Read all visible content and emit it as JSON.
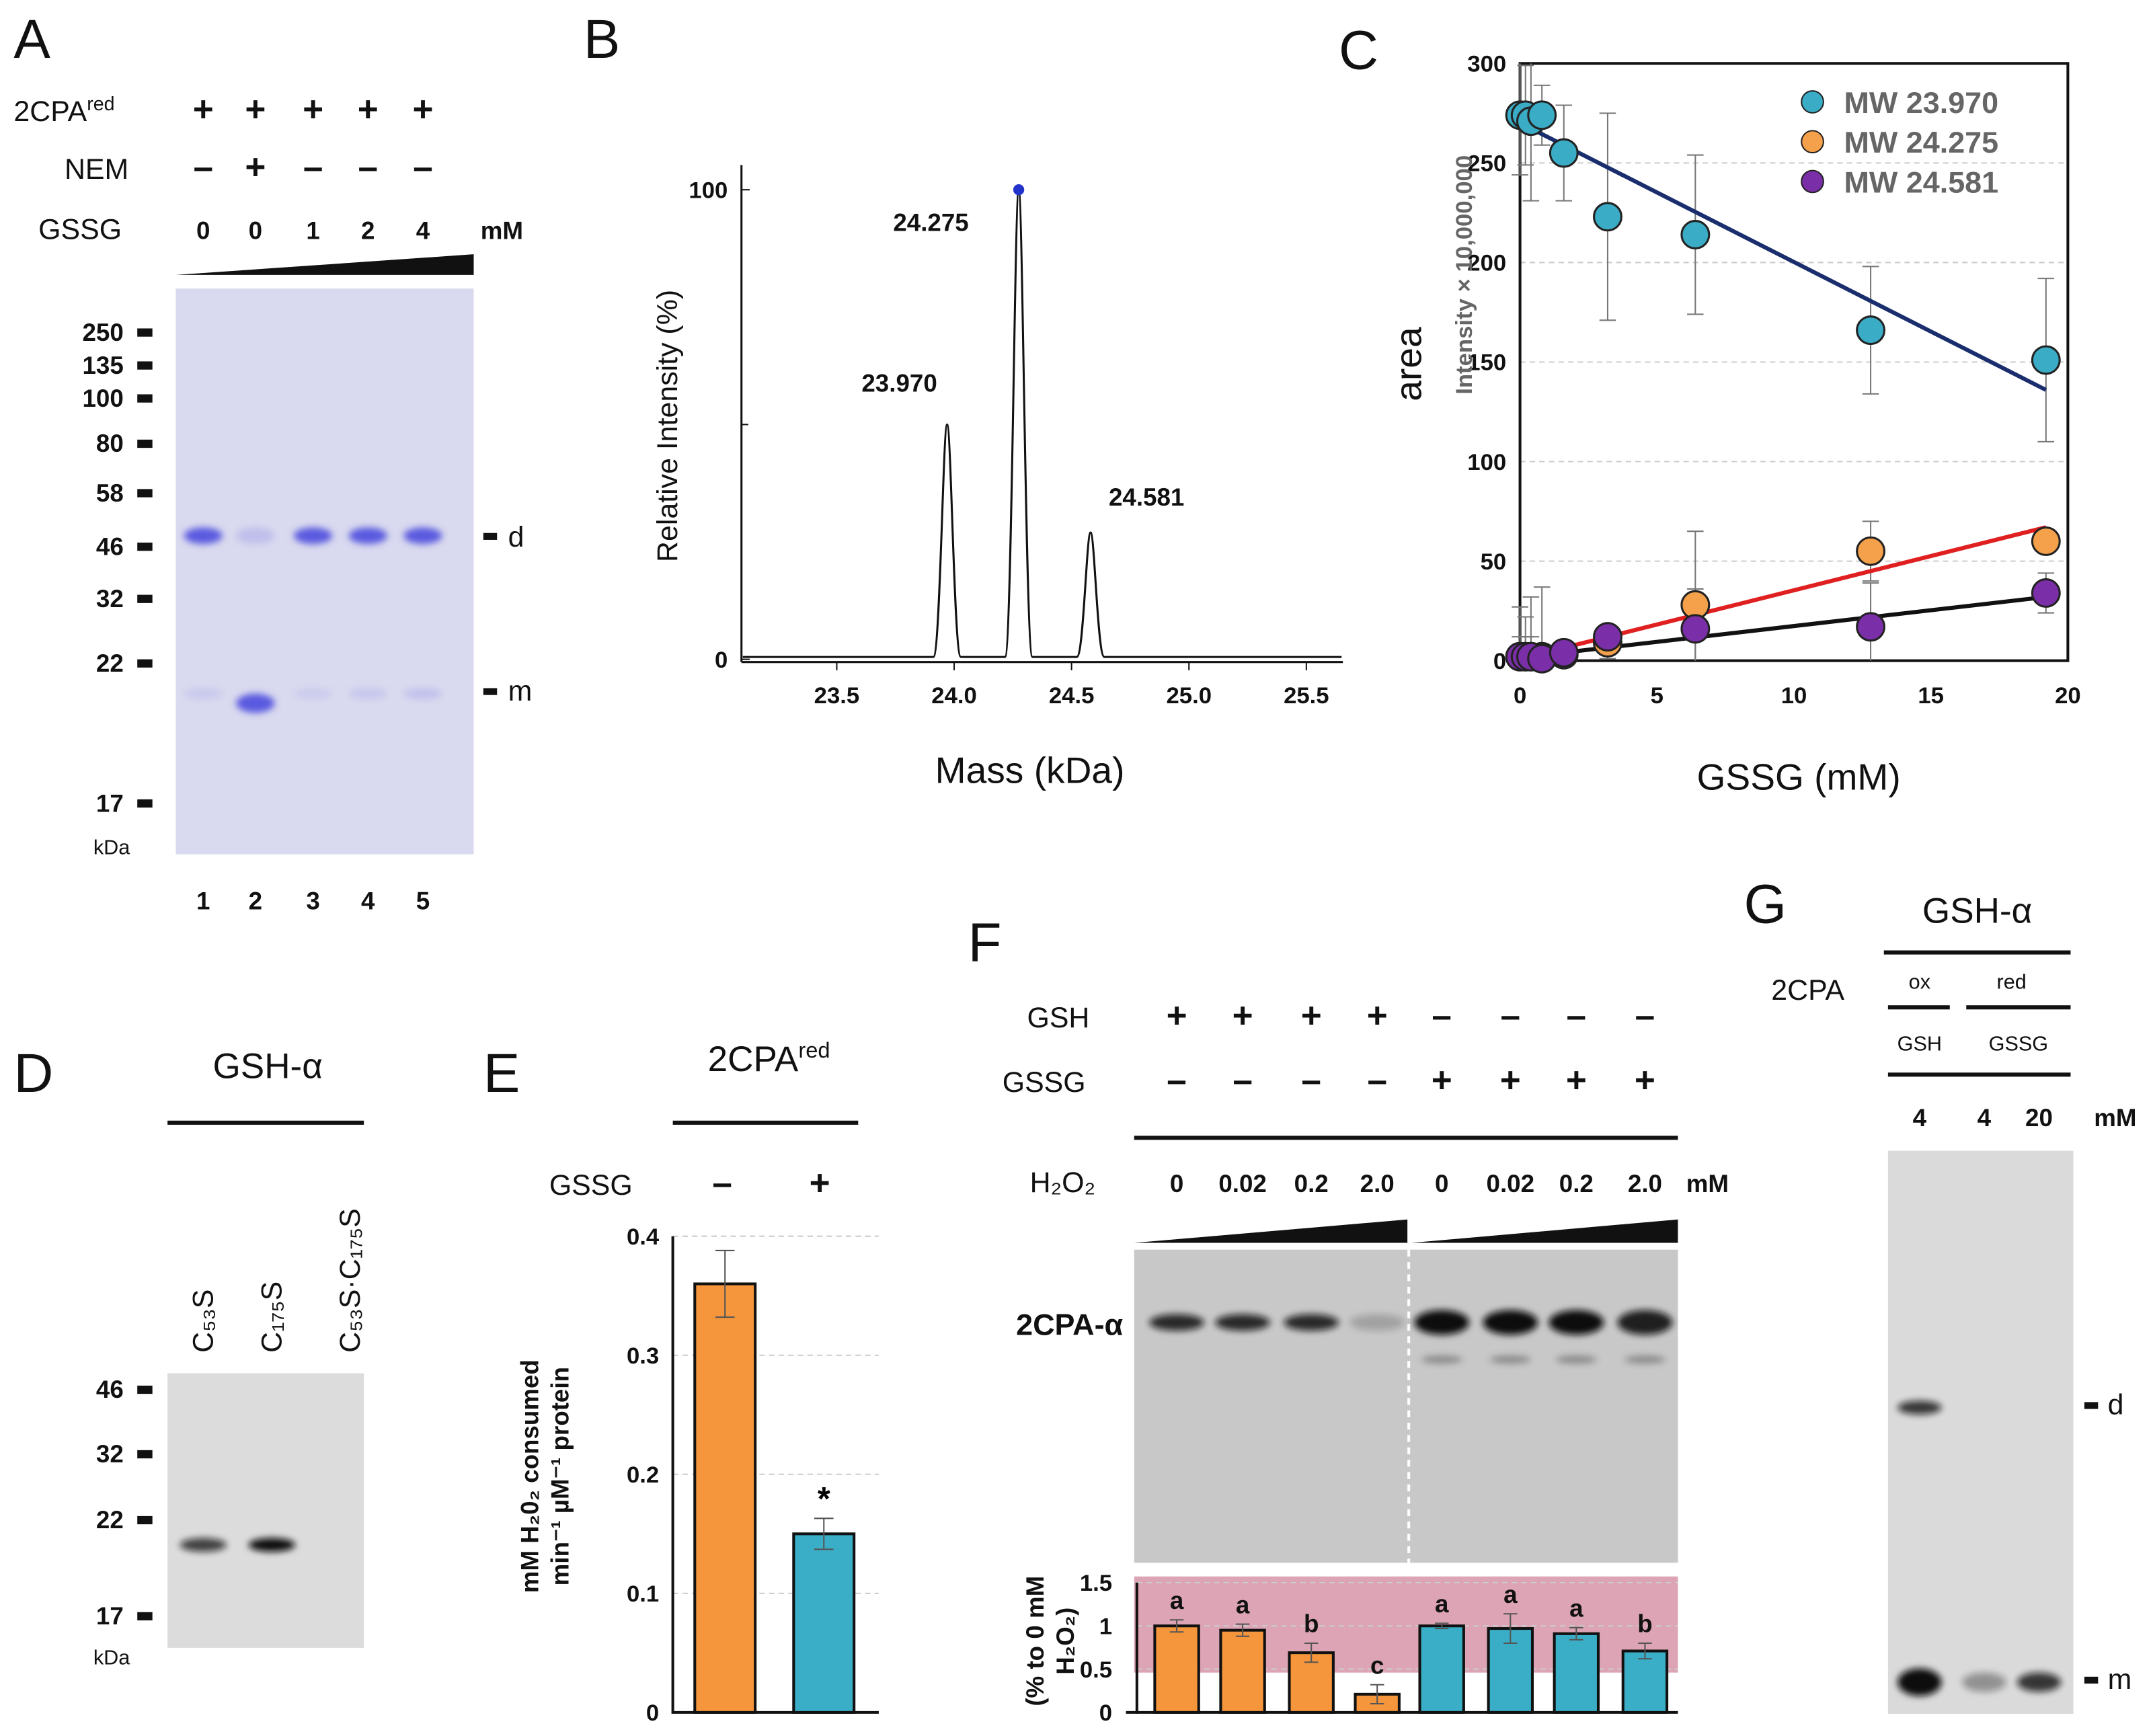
{
  "panel_letters": {
    "a": "A",
    "b": "B",
    "c": "C",
    "d": "D",
    "e": "E",
    "f": "F",
    "g": "G"
  },
  "panel_a": {
    "row_labels": {
      "protein": "2CPA",
      "protein_sup": "red",
      "nem": "NEM",
      "gssg": "GSSG"
    },
    "protein_signs": [
      "+",
      "+",
      "+",
      "+",
      "+"
    ],
    "nem_signs": [
      "–",
      "+",
      "–",
      "–",
      "–"
    ],
    "gssg_values": [
      "0",
      "0",
      "1",
      "2",
      "4"
    ],
    "unit": "mM",
    "markers": [
      "250",
      "135",
      "100",
      "80",
      "58",
      "46",
      "32",
      "22",
      "17"
    ],
    "marker_unit": "kDa",
    "lane_numbers": [
      "1",
      "2",
      "3",
      "4",
      "5"
    ],
    "band_labels": {
      "dimer": "d",
      "monomer": "m"
    },
    "dimer_intensity": [
      1.0,
      0.2,
      1.0,
      1.0,
      1.0
    ],
    "monomer_intensity": [
      0.12,
      1.0,
      0.1,
      0.14,
      0.18
    ],
    "gel_color": "#5a5ae0"
  },
  "panel_b": {
    "chart_data": {
      "type": "line",
      "title": "",
      "xlabel": "Mass (kDa)",
      "ylabel": "Relative Intensity (%)",
      "xlim": [
        23.1,
        25.65
      ],
      "ylim": [
        0,
        100
      ],
      "xticks": [
        "23.5",
        "24.0",
        "24.5",
        "25.0",
        "25.5"
      ],
      "yticks": [
        "0",
        "100"
      ],
      "peaks": [
        {
          "mass": 23.97,
          "intensity": 50,
          "label": "23.970"
        },
        {
          "mass": 24.275,
          "intensity": 100,
          "label": "24.275"
        },
        {
          "mass": 24.581,
          "intensity": 27,
          "label": "24.581"
        }
      ]
    }
  },
  "panel_c": {
    "chart_data": {
      "type": "scatter",
      "xlabel": "GSSG (mM)",
      "ylabel": "area",
      "ylabel2": "Intensity × 10,000,000",
      "xlim": [
        0,
        20
      ],
      "ylim": [
        0,
        300
      ],
      "xticks": [
        "0",
        "5",
        "10",
        "15",
        "20"
      ],
      "yticks": [
        "0",
        "50",
        "100",
        "150",
        "200",
        "250",
        "300"
      ],
      "grid": true,
      "legend_position": "top-right",
      "x": [
        0,
        0.2,
        0.4,
        0.8,
        1.6,
        3.2,
        6.4,
        12.8,
        19.2
      ],
      "series": [
        {
          "name": "MW 23.970",
          "color": "#3aacc6",
          "line_color": "#1a2e6e",
          "values": [
            274,
            274,
            271,
            274,
            255,
            223,
            214,
            166,
            151
          ],
          "errors": [
            30,
            25,
            40,
            15,
            24,
            52,
            40,
            32,
            41
          ],
          "fit": [
            268,
            136
          ]
        },
        {
          "name": "MW 24.275",
          "color": "#f5a04a",
          "line_color": "#e02020",
          "values": [
            2,
            2,
            2,
            2,
            3,
            9,
            28,
            55,
            60
          ],
          "errors": [
            25,
            20,
            30,
            35,
            5,
            8,
            37,
            15,
            5
          ],
          "fit": [
            2,
            67
          ]
        },
        {
          "name": "MW 24.581",
          "color": "#7a2fa8",
          "line_color": "#111111",
          "values": [
            2,
            2,
            2,
            1,
            4,
            12,
            16,
            17,
            34
          ],
          "errors": [
            10,
            10,
            10,
            5,
            4,
            5,
            20,
            22,
            10
          ],
          "fit": [
            2,
            32
          ]
        }
      ]
    }
  },
  "panel_d": {
    "title": "GSH-α",
    "lanes": [
      "C₅₃S",
      "C₁₇₅S",
      "C₅₃S·C₁₇₅S"
    ],
    "markers": [
      "46",
      "32",
      "22",
      "17"
    ],
    "marker_unit": "kDa",
    "band_intensity": [
      0.75,
      1.0,
      0.0
    ]
  },
  "panel_e": {
    "title": "2CPA",
    "title_sup": "red",
    "row_label": "GSSG",
    "signs": [
      "–",
      "+"
    ],
    "chart_data": {
      "type": "bar",
      "categories": [
        "–",
        "+"
      ],
      "values": [
        0.36,
        0.15
      ],
      "errors": [
        0.028,
        0.013
      ],
      "colors": [
        "#f5963c",
        "#3aaec6"
      ],
      "annotations": [
        "",
        "*"
      ],
      "ylabel": "mM H₂0₂ consumed min⁻¹ µM⁻¹ protein",
      "ylabel_lines": [
        "mM H₂0₂ consumed",
        "min⁻¹ µM⁻¹ protein"
      ],
      "ylim": [
        0,
        0.4
      ],
      "yticks": [
        "0",
        "0.1",
        "0.2",
        "0.3",
        "0.4"
      ],
      "grid": true
    }
  },
  "panel_f": {
    "gsh_label": "GSH",
    "gssg_label": "GSSG",
    "gsh_signs": [
      "+",
      "+",
      "+",
      "+",
      "–",
      "–",
      "–",
      "–"
    ],
    "gssg_signs": [
      "–",
      "–",
      "–",
      "–",
      "+",
      "+",
      "+",
      "+"
    ],
    "h2o2_label": "H₂O₂",
    "h2o2_values": [
      "0",
      "0.02",
      "0.2",
      "2.0",
      "0",
      "0.02",
      "0.2",
      "2.0"
    ],
    "unit": "mM",
    "blot_label": "2CPA-α",
    "band_intensity": [
      0.85,
      0.85,
      0.85,
      0.2,
      1.0,
      1.0,
      1.0,
      0.9
    ],
    "chart_data": {
      "type": "bar",
      "categories": [
        "GSH 0",
        "GSH 0.02",
        "GSH 0.2",
        "GSH 2.0",
        "GSSG 0",
        "GSSG 0.02",
        "GSSG 0.2",
        "GSSG 2.0"
      ],
      "values": [
        1.0,
        0.95,
        0.69,
        0.21,
        1.0,
        0.97,
        0.91,
        0.71
      ],
      "errors": [
        0.07,
        0.07,
        0.11,
        0.11,
        0.03,
        0.17,
        0.07,
        0.09
      ],
      "letters": [
        "a",
        "a",
        "b",
        "c",
        "a",
        "a",
        "a",
        "b"
      ],
      "colors": [
        "#f5963c",
        "#f5963c",
        "#f5963c",
        "#f5963c",
        "#3aaec6",
        "#3aaec6",
        "#3aaec6",
        "#3aaec6"
      ],
      "ylabel_lines": [
        "(% to 0 mM",
        "H₂O₂)"
      ],
      "ylim": [
        0,
        1.5
      ],
      "yticks": [
        "0",
        "0.5",
        "1",
        "1.5"
      ],
      "grid": true
    }
  },
  "panel_g": {
    "title": "GSH-α",
    "row_label": "2CPA",
    "ox_label": "ox",
    "red_label": "red",
    "gsh_label": "GSH",
    "gssg_label": "GSSG",
    "values": [
      "4",
      "4",
      "20"
    ],
    "unit": "mM",
    "band_labels": {
      "dimer": "d",
      "monomer": "m"
    },
    "dimer_intensity": [
      0.8,
      0,
      0
    ],
    "monomer_intensity": [
      1.0,
      0.35,
      0.8
    ]
  }
}
